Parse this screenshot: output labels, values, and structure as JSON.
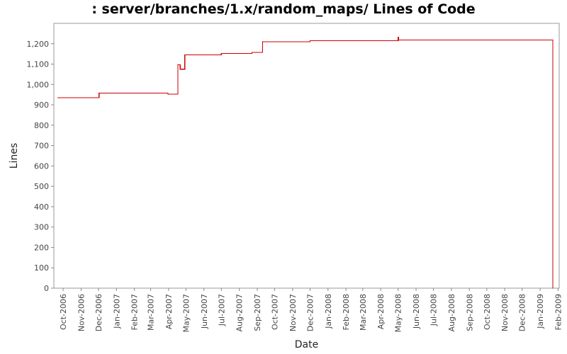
{
  "chart_data": {
    "type": "line",
    "title": ": server/branches/1.x/random_maps/ Lines of Code",
    "xlabel": "Date",
    "ylabel": "Lines",
    "ylim": [
      0,
      1300
    ],
    "xlim": [
      "2006-09-15",
      "2009-02-03"
    ],
    "grid": false,
    "line_color": "#cc0000",
    "y_ticks": [
      {
        "value": 0,
        "label": "0"
      },
      {
        "value": 100,
        "label": "100"
      },
      {
        "value": 200,
        "label": "200"
      },
      {
        "value": 300,
        "label": "300"
      },
      {
        "value": 400,
        "label": "400"
      },
      {
        "value": 500,
        "label": "500"
      },
      {
        "value": 600,
        "label": "600"
      },
      {
        "value": 700,
        "label": "700"
      },
      {
        "value": 800,
        "label": "800"
      },
      {
        "value": 900,
        "label": "900"
      },
      {
        "value": 1000,
        "label": "1,000"
      },
      {
        "value": 1100,
        "label": "1,100"
      },
      {
        "value": 1200,
        "label": "1,200"
      }
    ],
    "x_ticks": [
      {
        "date": "2006-10-01",
        "label": "Oct-2006"
      },
      {
        "date": "2006-11-01",
        "label": "Nov-2006"
      },
      {
        "date": "2006-12-01",
        "label": "Dec-2006"
      },
      {
        "date": "2007-01-01",
        "label": "Jan-2007"
      },
      {
        "date": "2007-02-01",
        "label": "Feb-2007"
      },
      {
        "date": "2007-03-01",
        "label": "Mar-2007"
      },
      {
        "date": "2007-04-01",
        "label": "Apr-2007"
      },
      {
        "date": "2007-05-01",
        "label": "May-2007"
      },
      {
        "date": "2007-06-01",
        "label": "Jun-2007"
      },
      {
        "date": "2007-07-01",
        "label": "Jul-2007"
      },
      {
        "date": "2007-08-01",
        "label": "Aug-2007"
      },
      {
        "date": "2007-09-01",
        "label": "Sep-2007"
      },
      {
        "date": "2007-10-01",
        "label": "Oct-2007"
      },
      {
        "date": "2007-11-01",
        "label": "Nov-2007"
      },
      {
        "date": "2007-12-01",
        "label": "Dec-2007"
      },
      {
        "date": "2008-01-01",
        "label": "Jan-2008"
      },
      {
        "date": "2008-02-01",
        "label": "Feb-2008"
      },
      {
        "date": "2008-03-01",
        "label": "Mar-2008"
      },
      {
        "date": "2008-04-01",
        "label": "Apr-2008"
      },
      {
        "date": "2008-05-01",
        "label": "May-2008"
      },
      {
        "date": "2008-06-01",
        "label": "Jun-2008"
      },
      {
        "date": "2008-07-01",
        "label": "Jul-2008"
      },
      {
        "date": "2008-08-01",
        "label": "Aug-2008"
      },
      {
        "date": "2008-09-01",
        "label": "Sep-2008"
      },
      {
        "date": "2008-10-01",
        "label": "Oct-2008"
      },
      {
        "date": "2008-11-01",
        "label": "Nov-2008"
      },
      {
        "date": "2008-12-01",
        "label": "Dec-2008"
      },
      {
        "date": "2009-01-01",
        "label": "Jan-2009"
      },
      {
        "date": "2009-02-01",
        "label": "Feb-2009"
      }
    ],
    "series": [
      {
        "style": "step",
        "points": [
          {
            "x": "2006-09-22",
            "y": 935
          },
          {
            "x": "2006-12-02",
            "y": 958
          },
          {
            "x": "2007-03-31",
            "y": 952
          },
          {
            "x": "2007-04-17",
            "y": 1097
          },
          {
            "x": "2007-04-21",
            "y": 1075
          },
          {
            "x": "2007-04-29",
            "y": 1145
          },
          {
            "x": "2007-07-01",
            "y": 1152
          },
          {
            "x": "2007-08-23",
            "y": 1157
          },
          {
            "x": "2007-09-10",
            "y": 1210
          },
          {
            "x": "2007-12-01",
            "y": 1215
          },
          {
            "x": "2008-05-01",
            "y": 1232
          },
          {
            "x": "2008-05-02",
            "y": 1218
          },
          {
            "x": "2009-01-23",
            "y": 0
          }
        ]
      }
    ]
  }
}
